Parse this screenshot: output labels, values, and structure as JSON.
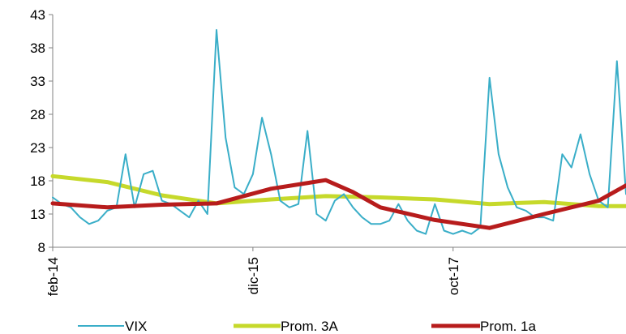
{
  "chart_data": {
    "type": "line",
    "title": "",
    "xlabel": "",
    "ylabel": "",
    "ylim": [
      8,
      43
    ],
    "yticks": [
      8,
      13,
      18,
      23,
      28,
      33,
      38,
      43
    ],
    "x_range": [
      "2014-02",
      "2019-05"
    ],
    "xticks": [
      {
        "x": "2014-02",
        "label": "feb-14"
      },
      {
        "x": "2015-12",
        "label": "dic-15"
      },
      {
        "x": "2017-10",
        "label": "oct-17"
      }
    ],
    "grid": false,
    "legend": "bottom",
    "series": [
      {
        "name": "VIX",
        "color": "#3aaec8",
        "x": [
          "2014-02",
          "2014-03",
          "2014-04",
          "2014-05",
          "2014-06",
          "2014-07",
          "2014-08",
          "2014-09",
          "2014-10",
          "2014-11",
          "2014-12",
          "2015-01",
          "2015-02",
          "2015-03",
          "2015-04",
          "2015-05",
          "2015-06",
          "2015-07",
          "2015-08",
          "2015-09",
          "2015-10",
          "2015-11",
          "2015-12",
          "2016-01",
          "2016-02",
          "2016-03",
          "2016-04",
          "2016-05",
          "2016-06",
          "2016-07",
          "2016-08",
          "2016-09",
          "2016-10",
          "2016-11",
          "2016-12",
          "2017-01",
          "2017-02",
          "2017-03",
          "2017-04",
          "2017-05",
          "2017-06",
          "2017-07",
          "2017-08",
          "2017-09",
          "2017-10",
          "2017-11",
          "2017-12",
          "2018-01",
          "2018-02",
          "2018-03",
          "2018-04",
          "2018-05",
          "2018-06",
          "2018-07",
          "2018-08",
          "2018-09",
          "2018-10",
          "2018-11",
          "2018-12",
          "2019-01",
          "2019-02",
          "2019-03",
          "2019-04",
          "2019-05"
        ],
        "values": [
          15.5,
          14.5,
          14.0,
          12.5,
          11.5,
          12.0,
          13.5,
          14.0,
          22.0,
          14.0,
          19.0,
          19.5,
          15.0,
          14.5,
          13.5,
          12.5,
          15.0,
          13.0,
          40.7,
          24.5,
          17.0,
          16.0,
          19.0,
          27.5,
          22.0,
          15.0,
          14.0,
          14.5,
          25.5,
          13.0,
          12.0,
          15.0,
          16.0,
          14.0,
          12.5,
          11.5,
          11.5,
          12.0,
          14.5,
          12.0,
          10.5,
          10.0,
          14.5,
          10.5,
          10.0,
          10.5,
          10.0,
          11.0,
          33.5,
          22.0,
          17.0,
          14.0,
          13.5,
          12.5,
          12.5,
          12.0,
          22.0,
          20.0,
          25.0,
          19.0,
          15.0,
          14.0,
          36.0,
          16.0
        ]
      },
      {
        "name": "Prom. 3A",
        "color": "#c6d92b",
        "x": [
          "2014-02",
          "2014-08",
          "2015-02",
          "2015-08",
          "2016-02",
          "2016-08",
          "2017-02",
          "2017-08",
          "2018-02",
          "2018-08",
          "2019-02",
          "2019-05"
        ],
        "values": [
          18.7,
          17.8,
          15.8,
          14.6,
          15.2,
          15.7,
          15.5,
          15.2,
          14.5,
          14.8,
          14.2,
          14.2
        ]
      },
      {
        "name": "Prom. 1a",
        "color": "#b71c1c",
        "x": [
          "2014-02",
          "2014-08",
          "2015-02",
          "2015-08",
          "2016-02",
          "2016-08",
          "2016-11",
          "2017-02",
          "2017-08",
          "2018-02",
          "2018-08",
          "2019-02",
          "2019-05"
        ],
        "values": [
          14.6,
          14.0,
          14.4,
          14.6,
          16.8,
          18.1,
          16.3,
          14.0,
          12.1,
          10.9,
          13.0,
          15.0,
          17.3
        ]
      }
    ]
  }
}
